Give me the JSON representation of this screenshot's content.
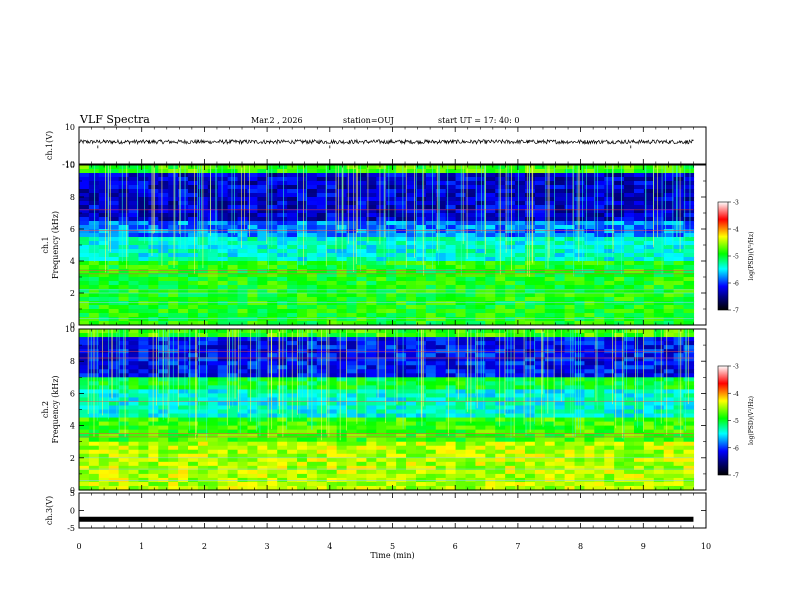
{
  "header": {
    "title": "VLF Spectra",
    "date": "Mar.2 , 2026",
    "station": "station=OUJ",
    "start_ut": "start UT = 17: 40: 0"
  },
  "chart_data": [
    {
      "type": "line",
      "panel": "ch1-waveform",
      "ylabel": "ch.1(V)",
      "ylim": [
        -10,
        10
      ],
      "y_ticks": [
        "10",
        "-10"
      ],
      "xlim": [
        0,
        10
      ],
      "series": [
        {
          "values_approx": "noise band centred near +2 V, amplitude about ±1 V, from 0 to 9.8 min"
        }
      ]
    },
    {
      "type": "heatmap",
      "panel": "ch1-spectrogram",
      "ylabel": "ch.1\nFrequency (kHz)",
      "ylabel_line1": "ch.1",
      "ylabel_line2": "Frequency (kHz)",
      "ylim": [
        0,
        10
      ],
      "y_ticks": [
        "10",
        "8",
        "6",
        "4",
        "2",
        "0"
      ],
      "xlim": [
        0,
        10
      ],
      "data_extent_min": 9.8,
      "colorbar": {
        "label": "log(PSD)(V²/Hz)",
        "range": [
          -7,
          -3
        ],
        "ticks": [
          "-3",
          "-4",
          "-5",
          "-6",
          "-7"
        ]
      }
    },
    {
      "type": "heatmap",
      "panel": "ch2-spectrogram",
      "ylabel_line1": "ch.2",
      "ylabel_line2": "Frequency (kHz)",
      "ylim": [
        0,
        10
      ],
      "y_ticks": [
        "10",
        "8",
        "6",
        "4",
        "2",
        "0"
      ],
      "xlim": [
        0,
        10
      ],
      "data_extent_min": 9.8,
      "colorbar": {
        "label": "log(PSD)(V²/Hz)",
        "range": [
          -7,
          -3
        ],
        "ticks": [
          "-3",
          "-4",
          "-5",
          "-6",
          "-7"
        ]
      }
    },
    {
      "type": "line",
      "panel": "ch3-waveform",
      "ylabel": "ch.3(V)",
      "ylim": [
        -5,
        5
      ],
      "y_ticks": [
        "5",
        "0",
        "-5"
      ],
      "xlim": [
        0,
        10
      ],
      "series": [
        {
          "values_approx": "flat line at about -2.5 V from 0 to 9.8 min"
        }
      ]
    }
  ],
  "xaxis": {
    "label": "Time (min)",
    "ticks": [
      "0",
      "1",
      "2",
      "3",
      "4",
      "5",
      "6",
      "7",
      "8",
      "9",
      "10"
    ]
  },
  "colorbar_label": "log(PSD)(V²/Hz)"
}
